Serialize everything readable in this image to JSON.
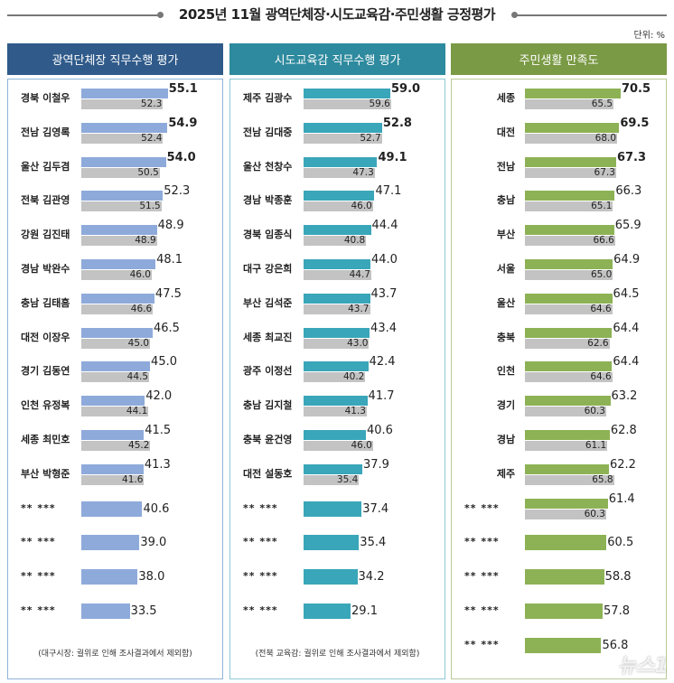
{
  "chart_data": [
    {
      "type": "bar",
      "title": "광역단체장 직무수행 평가",
      "color": "#8eaadb",
      "header_color": "#2f5a8a",
      "prev_color": "#c3c3c3",
      "categories": [
        "경북 이철우",
        "전남 김영록",
        "울산 김두겸",
        "전북 김관영",
        "강원 김진태",
        "경남 박완수",
        "충남 김태흠",
        "대전 이장우",
        "경기 김동연",
        "인천 유정복",
        "세종 최민호",
        "부산 박형준",
        "** ***",
        "** ***",
        "** ***",
        "** ***"
      ],
      "values": [
        55.1,
        54.9,
        54.0,
        52.3,
        48.9,
        48.1,
        47.5,
        46.5,
        45.0,
        42.0,
        41.5,
        41.3,
        40.6,
        39.0,
        38.0,
        33.5
      ],
      "prev_values": [
        52.3,
        52.4,
        50.5,
        51.5,
        48.9,
        46.0,
        46.6,
        45.0,
        44.5,
        44.1,
        45.2,
        41.6,
        null,
        null,
        null,
        null
      ],
      "note": "(대구시장: 궐위로 인해  조사결과에서 제외함)"
    },
    {
      "type": "bar",
      "title": "시도교육감 직무수행 평가",
      "color": "#3aa6b9",
      "header_color": "#2e8a9e",
      "prev_color": "#c3c3c3",
      "categories": [
        "제주 김광수",
        "전남 김대중",
        "울산 천창수",
        "경남 박종훈",
        "경북 임종식",
        "대구 강은희",
        "부산 김석준",
        "세종 최교진",
        "광주 이정선",
        "충남 김지철",
        "충북 윤건영",
        "대전 설동호",
        "** ***",
        "** ***",
        "** ***",
        "** ***"
      ],
      "values": [
        59.0,
        52.8,
        49.1,
        47.1,
        44.4,
        44.0,
        43.7,
        43.4,
        42.4,
        41.7,
        40.6,
        37.9,
        37.4,
        35.4,
        34.2,
        29.1
      ],
      "prev_values": [
        59.6,
        52.7,
        47.3,
        46.0,
        40.8,
        44.7,
        43.7,
        43.0,
        40.2,
        41.3,
        46.0,
        35.4,
        null,
        null,
        null,
        null
      ],
      "note": "(전북 교육감: 궐위로 인해  조사결과에서 제외함)"
    },
    {
      "type": "bar",
      "title": "주민생활 만족도",
      "color": "#8db255",
      "header_color": "#7a9a45",
      "prev_color": "#c3c3c3",
      "categories": [
        "세종",
        "대전",
        "전남",
        "충남",
        "부산",
        "서울",
        "울산",
        "충북",
        "인천",
        "경기",
        "경남",
        "제주",
        "** ***",
        "** ***",
        "** ***",
        "** ***",
        "** ***"
      ],
      "values": [
        70.5,
        69.5,
        67.3,
        66.3,
        65.9,
        64.9,
        64.5,
        64.4,
        64.4,
        63.2,
        62.8,
        62.2,
        61.4,
        60.5,
        58.8,
        57.8,
        56.8
      ],
      "prev_values": [
        65.5,
        68.0,
        67.3,
        65.1,
        66.6,
        65.0,
        64.6,
        62.6,
        64.6,
        60.3,
        61.1,
        65.8,
        60.3,
        null,
        null,
        null,
        null
      ],
      "note": ""
    }
  ],
  "header": {
    "title": "2025년 11월 광역단체장·시도교육감·주민생활 긍정평가",
    "unit": "단위: %"
  },
  "watermark": "뉴스1"
}
